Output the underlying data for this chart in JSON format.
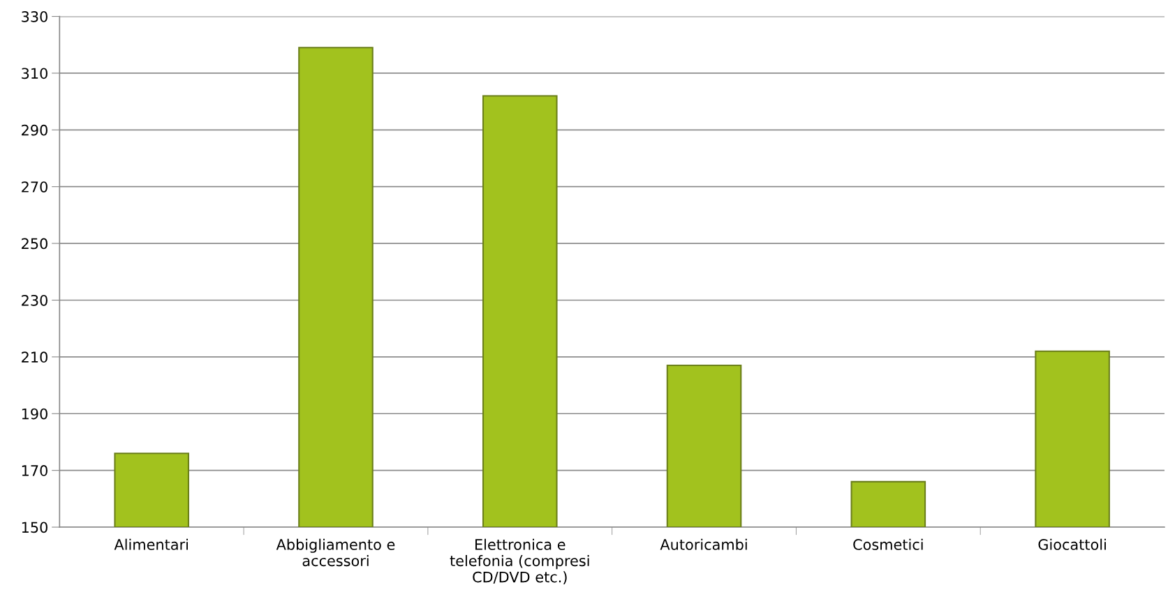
{
  "chart_data": {
    "type": "bar",
    "categories": [
      "Alimentari",
      "Abbigliamento e\naccessori",
      "Elettronica e\ntelefonia (compresi\nCD/DVD etc.)",
      "Autoricambi",
      "Cosmetici",
      "Giocattoli"
    ],
    "values": [
      176,
      319,
      302,
      207,
      166,
      212
    ],
    "color": "#a2c21e",
    "ylim": [
      150,
      330
    ],
    "yticks": [
      150,
      170,
      190,
      210,
      230,
      250,
      270,
      290,
      310,
      330
    ],
    "grid": "y",
    "legend": false
  }
}
